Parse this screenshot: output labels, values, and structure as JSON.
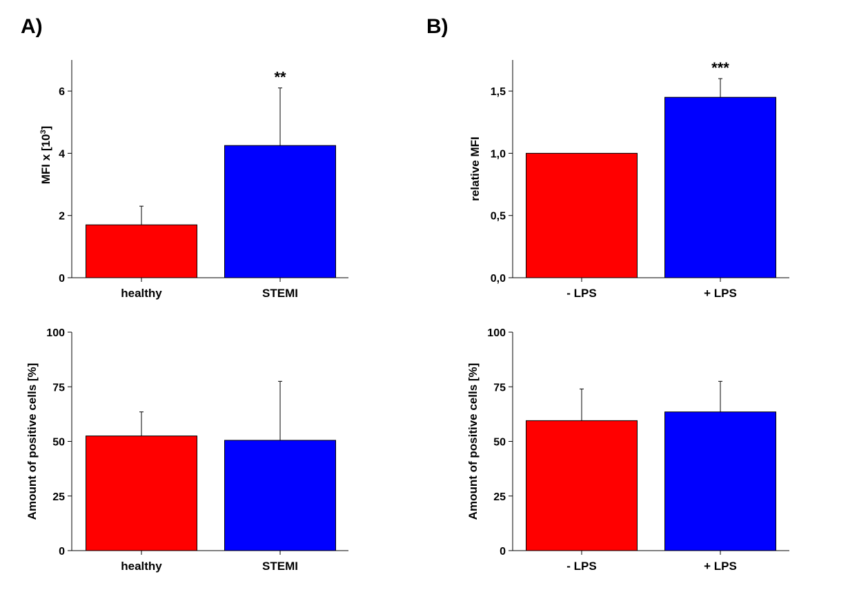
{
  "panels": [
    {
      "letter": "A)"
    },
    {
      "letter": "B)"
    }
  ],
  "colors": {
    "red": "#ff0000",
    "blue": "#0000ff"
  },
  "chart_data": [
    {
      "type": "bar",
      "panel": "A)",
      "ylabel": "MFI x [10³]",
      "ylabel_main": "MFI x [10",
      "ylabel_sup": "3",
      "ylabel_end": "]",
      "categories": [
        "healthy",
        "STEMI"
      ],
      "values": [
        1.7,
        4.25
      ],
      "errors": [
        0.6,
        1.85
      ],
      "annotations": [
        "",
        "**"
      ],
      "ylim": [
        0,
        7
      ],
      "yticks": [
        0,
        2,
        4,
        6
      ],
      "ytick_labels": [
        "0",
        "2",
        "4",
        "6"
      ],
      "bar_colors": [
        "#ff0000",
        "#0000ff"
      ]
    },
    {
      "type": "bar",
      "panel": "B)",
      "ylabel": "relative MFI",
      "categories": [
        "- LPS",
        "+ LPS"
      ],
      "values": [
        1.0,
        1.45
      ],
      "errors": [
        0,
        0.15
      ],
      "annotations": [
        "",
        "***"
      ],
      "ylim": [
        0,
        1.75
      ],
      "yticks": [
        0,
        0.5,
        1.0,
        1.5
      ],
      "ytick_labels": [
        "0,0",
        "0,5",
        "1,0",
        "1,5"
      ],
      "bar_colors": [
        "#ff0000",
        "#0000ff"
      ]
    },
    {
      "type": "bar",
      "panel": "A)",
      "ylabel": "Amount of positive cells [%]",
      "categories": [
        "healthy",
        "STEMI"
      ],
      "values": [
        52.5,
        50.5
      ],
      "errors": [
        11,
        27
      ],
      "annotations": [
        "",
        ""
      ],
      "ylim": [
        0,
        100
      ],
      "yticks": [
        0,
        25,
        50,
        75,
        100
      ],
      "ytick_labels": [
        "0",
        "25",
        "50",
        "75",
        "100"
      ],
      "bar_colors": [
        "#ff0000",
        "#0000ff"
      ]
    },
    {
      "type": "bar",
      "panel": "B)",
      "ylabel": "Amount of positive cells [%]",
      "categories": [
        "- LPS",
        "+ LPS"
      ],
      "values": [
        59.5,
        63.5
      ],
      "errors": [
        14.5,
        14
      ],
      "annotations": [
        "",
        ""
      ],
      "ylim": [
        0,
        100
      ],
      "yticks": [
        0,
        25,
        50,
        75,
        100
      ],
      "ytick_labels": [
        "0",
        "25",
        "50",
        "75",
        "100"
      ],
      "bar_colors": [
        "#ff0000",
        "#0000ff"
      ]
    }
  ]
}
